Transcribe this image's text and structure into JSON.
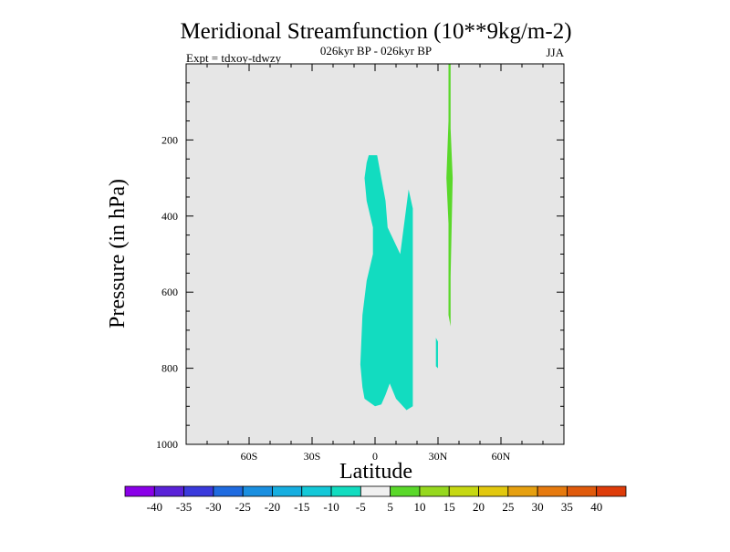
{
  "chart_data": {
    "type": "heatmap",
    "title": "Meridional Streamfunction (10**9kg/m-2)",
    "subtitle": "026kyr BP - 026kyr BP",
    "left_label": "Expt = tdxoy-tdwzy",
    "right_label": "JJA",
    "xlabel": "Latitude",
    "ylabel": "Pressure (in hPa)",
    "xlim": [
      -90,
      90
    ],
    "ylim": [
      0,
      1000
    ],
    "y_inverted": true,
    "x_ticks": [
      {
        "value": -60,
        "label": "60S"
      },
      {
        "value": -30,
        "label": "30S"
      },
      {
        "value": 0,
        "label": "0"
      },
      {
        "value": 30,
        "label": "30N"
      },
      {
        "value": 60,
        "label": "60N"
      }
    ],
    "y_ticks": [
      {
        "value": 200,
        "label": "200"
      },
      {
        "value": 400,
        "label": "400"
      },
      {
        "value": 600,
        "label": "600"
      },
      {
        "value": 800,
        "label": "800"
      },
      {
        "value": 1000,
        "label": "1000"
      }
    ],
    "background_color": "#e6e6e6",
    "colorbar": {
      "labels": [
        "-40",
        "-35",
        "-30",
        "-25",
        "-20",
        "-15",
        "-10",
        "-5",
        "5",
        "10",
        "15",
        "20",
        "25",
        "30",
        "35",
        "40"
      ],
      "colors": [
        "#8a00e8",
        "#5a22d8",
        "#3a3adc",
        "#1f6be0",
        "#1a8fe0",
        "#16aee0",
        "#14c8d8",
        "#12dcc0",
        "#f0f0f0",
        "#5ad82a",
        "#96d81e",
        "#c6d812",
        "#e2c80e",
        "#e6a010",
        "#e67a0e",
        "#e05a0c",
        "#de3c0a"
      ]
    },
    "regions": [
      {
        "name": "-10 to -5",
        "color": "#12dcc0",
        "points": [
          [
            -3,
            240
          ],
          [
            1,
            240
          ],
          [
            3,
            300
          ],
          [
            5,
            360
          ],
          [
            6,
            430
          ],
          [
            12,
            500
          ],
          [
            16,
            330
          ],
          [
            18,
            380
          ],
          [
            18,
            900
          ],
          [
            15,
            910
          ],
          [
            10,
            880
          ],
          [
            7,
            840
          ],
          [
            5,
            870
          ],
          [
            3,
            895
          ],
          [
            0,
            900
          ],
          [
            -5,
            880
          ],
          [
            -6,
            850
          ],
          [
            -7,
            790
          ],
          [
            -6,
            660
          ],
          [
            -4,
            570
          ],
          [
            -1,
            500
          ],
          [
            -1,
            430
          ],
          [
            -4,
            360
          ],
          [
            -5,
            300
          ],
          [
            -4,
            260
          ]
        ]
      },
      {
        "name": "-10 to -5 (small)",
        "color": "#12dcc0",
        "points": [
          [
            29,
            720
          ],
          [
            30,
            730
          ],
          [
            30,
            800
          ],
          [
            29,
            795
          ]
        ]
      },
      {
        "name": "5 to 10",
        "color": "#5ad82a",
        "points": [
          [
            35,
            0
          ],
          [
            36,
            0
          ],
          [
            36,
            170
          ],
          [
            37,
            300
          ],
          [
            36,
            560
          ],
          [
            36,
            690
          ],
          [
            35,
            660
          ],
          [
            35,
            420
          ],
          [
            34,
            300
          ],
          [
            35,
            150
          ]
        ]
      }
    ]
  }
}
